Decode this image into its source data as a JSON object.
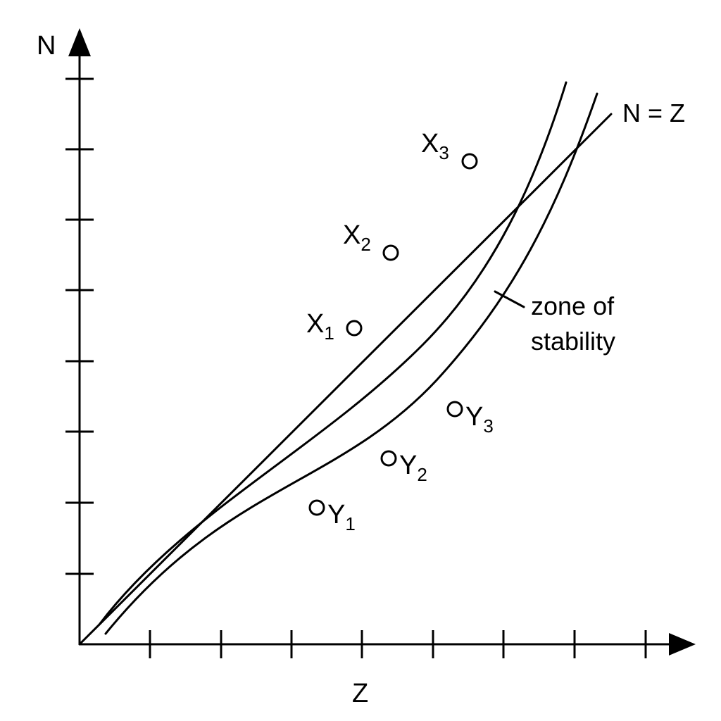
{
  "axes": {
    "y_label": "N",
    "x_label": "Z"
  },
  "lines": {
    "equal_line_label": "N = Z",
    "zone_label_line1": "zone of",
    "zone_label_line2": "stability"
  },
  "points": {
    "x1": {
      "base": "X",
      "sub": "1"
    },
    "x2": {
      "base": "X",
      "sub": "2"
    },
    "x3": {
      "base": "X",
      "sub": "3"
    },
    "y1": {
      "base": "Y",
      "sub": "1"
    },
    "y2": {
      "base": "Y",
      "sub": "2"
    },
    "y3": {
      "base": "Y",
      "sub": "3"
    }
  }
}
